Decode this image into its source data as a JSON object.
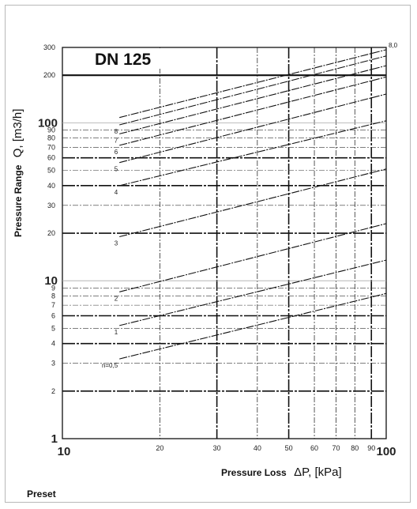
{
  "chart_data": {
    "type": "line",
    "title": "DN 125",
    "ylabel_prefix": "Pressure Range",
    "ylabel_main": "Q, [m3/h]",
    "xlabel_prefix": "Pressure Loss",
    "xlabel_main": "ΔP, [kPa]",
    "footer": "Preset",
    "xscale": "log",
    "yscale": "log",
    "xlim": [
      10,
      100
    ],
    "ylim": [
      1,
      300
    ],
    "grid": true,
    "x_ticks": [
      {
        "v": 10,
        "label": "10",
        "big": true
      },
      {
        "v": 20,
        "label": "20"
      },
      {
        "v": 30,
        "label": "30"
      },
      {
        "v": 40,
        "label": "40"
      },
      {
        "v": 50,
        "label": "50"
      },
      {
        "v": 60,
        "label": "60"
      },
      {
        "v": 70,
        "label": "70"
      },
      {
        "v": 80,
        "label": "80"
      },
      {
        "v": 90,
        "label": "90"
      },
      {
        "v": 100,
        "label": "100",
        "big": true
      }
    ],
    "y_ticks": [
      {
        "v": 1,
        "label": "1",
        "big": true
      },
      {
        "v": 2,
        "label": "2"
      },
      {
        "v": 3,
        "label": "3"
      },
      {
        "v": 4,
        "label": "4"
      },
      {
        "v": 5,
        "label": "5"
      },
      {
        "v": 6,
        "label": "6"
      },
      {
        "v": 7,
        "label": "7"
      },
      {
        "v": 8,
        "label": "8"
      },
      {
        "v": 9,
        "label": "9"
      },
      {
        "v": 10,
        "label": "10",
        "big": true
      },
      {
        "v": 20,
        "label": "20"
      },
      {
        "v": 30,
        "label": "30"
      },
      {
        "v": 40,
        "label": "40"
      },
      {
        "v": 50,
        "label": "50"
      },
      {
        "v": 60,
        "label": "60"
      },
      {
        "v": 70,
        "label": "70"
      },
      {
        "v": 80,
        "label": "80"
      },
      {
        "v": 90,
        "label": "90"
      },
      {
        "v": 100,
        "label": "100",
        "big": true
      },
      {
        "v": 200,
        "label": "200"
      },
      {
        "v": 300,
        "label": "300"
      }
    ],
    "series": [
      {
        "name": "n=0,5",
        "x": [
          15,
          100
        ],
        "y": [
          3.2,
          8.3
        ]
      },
      {
        "name": "1",
        "x": [
          15,
          100
        ],
        "y": [
          5.2,
          13.5
        ]
      },
      {
        "name": "2",
        "x": [
          15,
          100
        ],
        "y": [
          8.5,
          23
        ]
      },
      {
        "name": "3",
        "x": [
          15,
          100
        ],
        "y": [
          19,
          51
        ]
      },
      {
        "name": "4",
        "x": [
          15,
          100
        ],
        "y": [
          40,
          103
        ]
      },
      {
        "name": "5",
        "x": [
          15,
          100
        ],
        "y": [
          56,
          152
        ]
      },
      {
        "name": "6",
        "x": [
          15,
          100
        ],
        "y": [
          72,
          195
        ]
      },
      {
        "name": "7",
        "x": [
          15,
          100
        ],
        "y": [
          85,
          230
        ]
      },
      {
        "name": "8",
        "x": [
          15,
          100
        ],
        "y": [
          97,
          265
        ]
      },
      {
        "name": "8,0",
        "x": [
          15,
          100
        ],
        "y": [
          108,
          290
        ]
      }
    ]
  }
}
